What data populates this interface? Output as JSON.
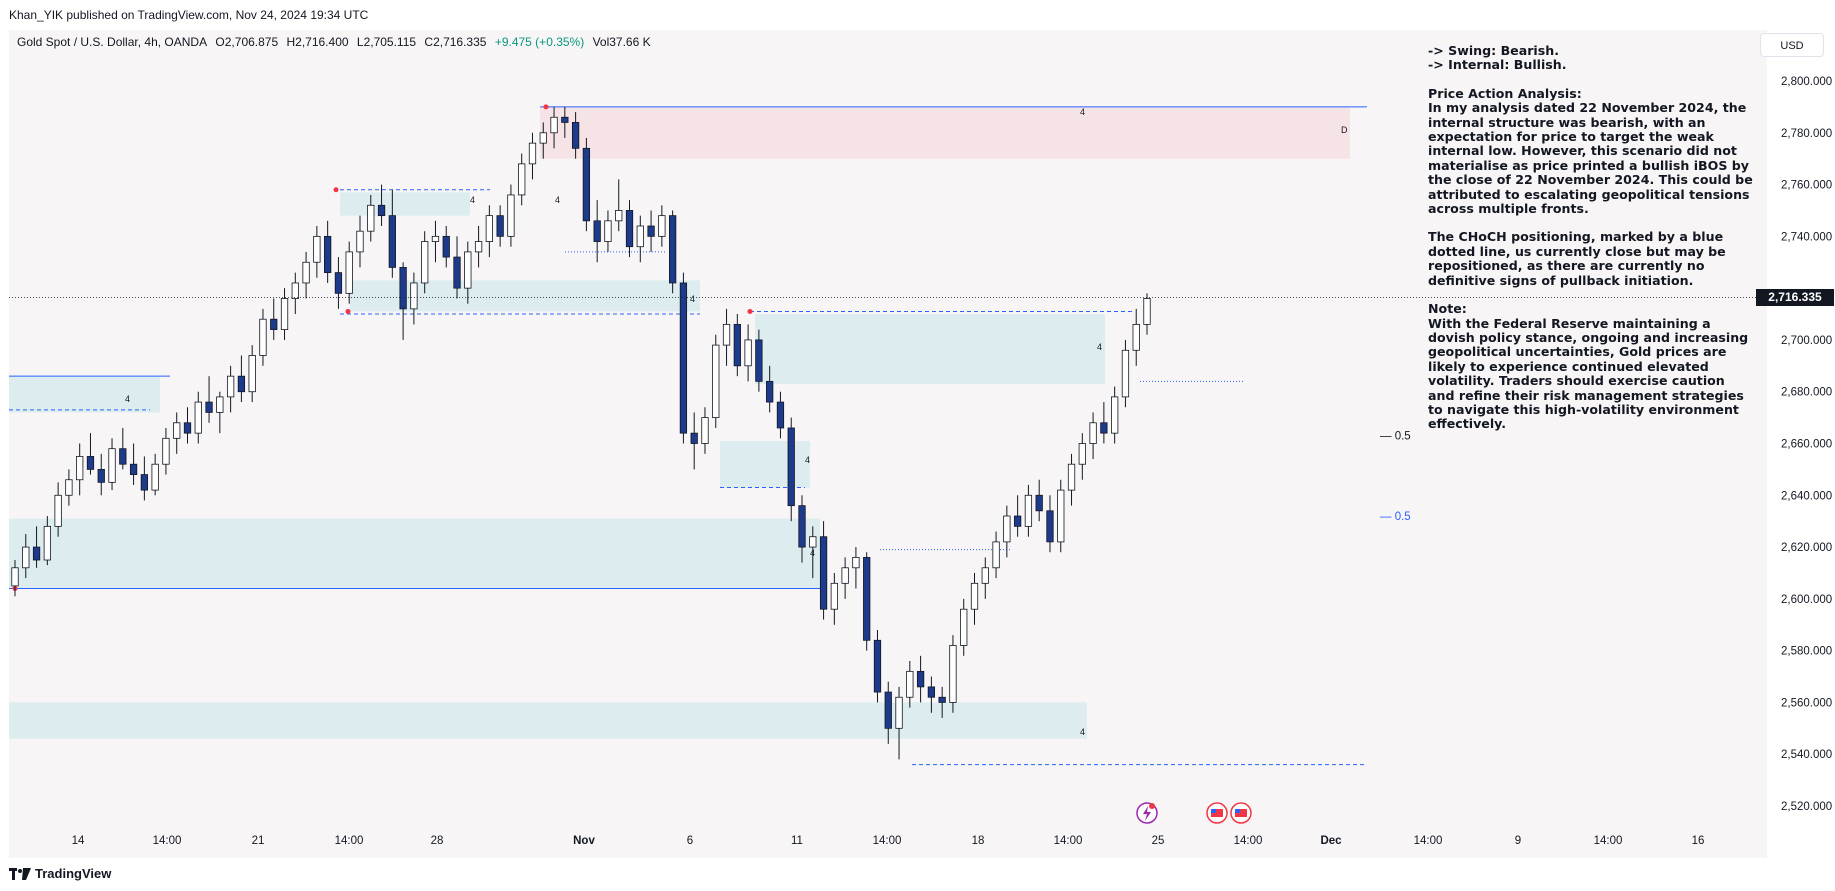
{
  "header": {
    "published": "Khan_YIK published on TradingView.com, Nov 24, 2024 19:34 UTC"
  },
  "legend": {
    "symbol": "Gold Spot / U.S. Dollar, 4h, OANDA",
    "open": "O2,706.875",
    "high": "H2,716.400",
    "low": "L2,705.115",
    "close": "C2,716.335",
    "change": "+9.475 (+0.35%)",
    "volume": "Vol37.66 K",
    "change_color": "#089981"
  },
  "currency_button": "USD",
  "last_price_label": "2,716.335",
  "footer": {
    "brand": "TradingView"
  },
  "notes": {
    "swing": "-> Swing:  Bearish.",
    "internal": "-> Internal:  Bullish.",
    "pa_title": "Price Action Analysis:",
    "pa_body": "In my analysis dated 22 November 2024, the internal structure was bearish, with an expectation for price to target the weak internal low. However, this scenario did not materialise as price printed a bullish iBOS by the close of 22 November 2024. This could be attributed to escalating geopolitical tensions across multiple fronts.",
    "choch_body": "The CHoCH positioning, marked by a blue dotted line, us currently close but may be repositioned, as there are currently no definitive signs of pullback initiation.",
    "note_title": "Note:",
    "note_body": "With the Federal Reserve maintaining a dovish policy stance, ongoing and increasing geopolitical uncertainties, Gold prices are likely to experience continued elevated volatility. Traders should exercise caution and refine their risk management strategies to navigate this high-volatility environment effectively."
  },
  "colors": {
    "bull_candle": "#ffffff",
    "bear_candle": "#1e3a8a",
    "wick": "#131722",
    "demand_zone": "#dcecef",
    "supply_zone": "#f6e3e5",
    "structure_line": "#2962ff"
  },
  "chart_data": {
    "type": "candlestick",
    "symbol": "Gold Spot / U.S. Dollar",
    "timeframe": "4h",
    "y_ticks": [
      2520,
      2540,
      2560,
      2580,
      2600,
      2620,
      2640,
      2660,
      2680,
      2700,
      2720,
      2740,
      2760,
      2780,
      2800
    ],
    "y_tick_labels": [
      "2,520.000",
      "2,540.000",
      "2,560.000",
      "2,580.000",
      "2,600.000",
      "2,620.000",
      "2,640.000",
      "2,660.000",
      "2,680.000",
      "2,700.000",
      "2,720.000",
      "2,740.000",
      "2,760.000",
      "2,780.000",
      "2,800.000"
    ],
    "ylim": [
      2512,
      2818
    ],
    "x_tick_labels": [
      "14",
      "14:00",
      "21",
      "14:00",
      "28",
      "Nov",
      "6",
      "11",
      "14:00",
      "18",
      "14:00",
      "25",
      "14:00",
      "Dec",
      "14:00",
      "9",
      "14:00",
      "16"
    ],
    "last_price": 2716.335,
    "fib_labels": [
      {
        "text": "0.5",
        "price": 2663
      },
      {
        "text": "0.5",
        "price": 2632
      }
    ],
    "zone_labels": [
      "4",
      "4",
      "4",
      "4",
      "4",
      "4",
      "4",
      "4",
      "4",
      "D"
    ],
    "candles": [
      [
        2605,
        2615,
        2601,
        2612
      ],
      [
        2612,
        2625,
        2608,
        2620
      ],
      [
        2620,
        2628,
        2612,
        2615
      ],
      [
        2615,
        2632,
        2613,
        2628
      ],
      [
        2628,
        2645,
        2624,
        2640
      ],
      [
        2640,
        2650,
        2636,
        2646
      ],
      [
        2646,
        2660,
        2640,
        2655
      ],
      [
        2655,
        2664,
        2648,
        2650
      ],
      [
        2650,
        2656,
        2640,
        2645
      ],
      [
        2645,
        2662,
        2642,
        2658
      ],
      [
        2658,
        2666,
        2650,
        2652
      ],
      [
        2652,
        2660,
        2644,
        2648
      ],
      [
        2648,
        2655,
        2638,
        2642
      ],
      [
        2642,
        2656,
        2640,
        2652
      ],
      [
        2652,
        2666,
        2648,
        2662
      ],
      [
        2662,
        2672,
        2656,
        2668
      ],
      [
        2668,
        2674,
        2660,
        2664
      ],
      [
        2664,
        2680,
        2660,
        2676
      ],
      [
        2676,
        2686,
        2668,
        2672
      ],
      [
        2672,
        2680,
        2664,
        2678
      ],
      [
        2678,
        2690,
        2672,
        2686
      ],
      [
        2686,
        2694,
        2676,
        2680
      ],
      [
        2680,
        2698,
        2676,
        2694
      ],
      [
        2694,
        2712,
        2690,
        2708
      ],
      [
        2708,
        2716,
        2700,
        2704
      ],
      [
        2704,
        2720,
        2700,
        2716
      ],
      [
        2716,
        2726,
        2710,
        2722
      ],
      [
        2722,
        2734,
        2716,
        2730
      ],
      [
        2730,
        2744,
        2724,
        2740
      ],
      [
        2740,
        2746,
        2722,
        2726
      ],
      [
        2726,
        2732,
        2712,
        2718
      ],
      [
        2718,
        2738,
        2714,
        2734
      ],
      [
        2734,
        2748,
        2728,
        2742
      ],
      [
        2742,
        2756,
        2738,
        2752
      ],
      [
        2752,
        2760,
        2744,
        2748
      ],
      [
        2748,
        2758,
        2724,
        2728
      ],
      [
        2728,
        2730,
        2700,
        2712
      ],
      [
        2712,
        2726,
        2706,
        2722
      ],
      [
        2722,
        2742,
        2718,
        2738
      ],
      [
        2738,
        2746,
        2730,
        2740
      ],
      [
        2740,
        2744,
        2728,
        2732
      ],
      [
        2732,
        2740,
        2716,
        2720
      ],
      [
        2720,
        2738,
        2714,
        2734
      ],
      [
        2734,
        2744,
        2728,
        2738
      ],
      [
        2738,
        2752,
        2732,
        2748
      ],
      [
        2748,
        2752,
        2736,
        2740
      ],
      [
        2740,
        2760,
        2736,
        2756
      ],
      [
        2756,
        2772,
        2752,
        2768
      ],
      [
        2768,
        2780,
        2762,
        2776
      ],
      [
        2776,
        2784,
        2770,
        2780
      ],
      [
        2780,
        2790,
        2774,
        2786
      ],
      [
        2786,
        2790,
        2778,
        2784
      ],
      [
        2784,
        2788,
        2770,
        2774
      ],
      [
        2774,
        2778,
        2742,
        2746
      ],
      [
        2746,
        2754,
        2730,
        2738
      ],
      [
        2738,
        2750,
        2734,
        2746
      ],
      [
        2746,
        2762,
        2742,
        2750
      ],
      [
        2750,
        2754,
        2732,
        2736
      ],
      [
        2736,
        2748,
        2730,
        2744
      ],
      [
        2744,
        2750,
        2734,
        2740
      ],
      [
        2740,
        2752,
        2736,
        2748
      ],
      [
        2748,
        2750,
        2718,
        2722
      ],
      [
        2722,
        2726,
        2660,
        2664
      ],
      [
        2664,
        2672,
        2650,
        2660
      ],
      [
        2660,
        2674,
        2656,
        2670
      ],
      [
        2670,
        2702,
        2666,
        2698
      ],
      [
        2698,
        2712,
        2690,
        2706
      ],
      [
        2706,
        2710,
        2686,
        2690
      ],
      [
        2690,
        2706,
        2684,
        2700
      ],
      [
        2700,
        2704,
        2680,
        2684
      ],
      [
        2684,
        2690,
        2672,
        2676
      ],
      [
        2676,
        2680,
        2662,
        2666
      ],
      [
        2666,
        2670,
        2630,
        2636
      ],
      [
        2636,
        2640,
        2614,
        2620
      ],
      [
        2620,
        2628,
        2608,
        2624
      ],
      [
        2624,
        2630,
        2592,
        2596
      ],
      [
        2596,
        2610,
        2590,
        2606
      ],
      [
        2606,
        2616,
        2600,
        2612
      ],
      [
        2612,
        2620,
        2604,
        2616
      ],
      [
        2616,
        2618,
        2580,
        2584
      ],
      [
        2584,
        2588,
        2560,
        2564
      ],
      [
        2564,
        2568,
        2544,
        2550
      ],
      [
        2550,
        2566,
        2538,
        2562
      ],
      [
        2562,
        2576,
        2558,
        2572
      ],
      [
        2572,
        2578,
        2560,
        2566
      ],
      [
        2566,
        2570,
        2556,
        2562
      ],
      [
        2562,
        2566,
        2554,
        2560
      ],
      [
        2560,
        2586,
        2556,
        2582
      ],
      [
        2582,
        2600,
        2578,
        2596
      ],
      [
        2596,
        2610,
        2590,
        2606
      ],
      [
        2606,
        2616,
        2600,
        2612
      ],
      [
        2612,
        2626,
        2608,
        2622
      ],
      [
        2622,
        2636,
        2616,
        2632
      ],
      [
        2632,
        2640,
        2624,
        2628
      ],
      [
        2628,
        2644,
        2624,
        2640
      ],
      [
        2640,
        2646,
        2630,
        2634
      ],
      [
        2634,
        2640,
        2618,
        2622
      ],
      [
        2622,
        2646,
        2618,
        2642
      ],
      [
        2642,
        2656,
        2636,
        2652
      ],
      [
        2652,
        2664,
        2646,
        2660
      ],
      [
        2660,
        2672,
        2654,
        2668
      ],
      [
        2668,
        2676,
        2660,
        2664
      ],
      [
        2664,
        2682,
        2660,
        2678
      ],
      [
        2678,
        2700,
        2674,
        2696
      ],
      [
        2696,
        2712,
        2690,
        2706
      ],
      [
        2706,
        2718,
        2702,
        2716
      ]
    ],
    "levels": [
      {
        "price": 2790,
        "style": "solid"
      },
      {
        "price": 2604,
        "style": "solid"
      },
      {
        "price": 2686,
        "style": "solid"
      },
      {
        "price": 2734,
        "style": "dotted"
      },
      {
        "price": 2710,
        "style": "dashed"
      },
      {
        "price": 2758,
        "style": "dashed"
      },
      {
        "price": 2711,
        "style": "dashed"
      },
      {
        "price": 2673,
        "style": "dashed"
      },
      {
        "price": 2643,
        "style": "dashed"
      },
      {
        "price": 2536,
        "style": "dashed"
      },
      {
        "price": 2619,
        "style": "dotted"
      },
      {
        "price": 2684,
        "style": "dotted"
      }
    ],
    "zones": [
      {
        "type": "supply",
        "from": 2770,
        "to": 2790
      },
      {
        "type": "demand",
        "from": 2757,
        "to": 2748
      },
      {
        "type": "demand",
        "from": 2723,
        "to": 2711
      },
      {
        "type": "demand",
        "from": 2710,
        "to": 2683
      },
      {
        "type": "demand",
        "from": 2686,
        "to": 2672
      },
      {
        "type": "demand",
        "from": 2661,
        "to": 2643
      },
      {
        "type": "demand",
        "from": 2631,
        "to": 2604
      },
      {
        "type": "demand",
        "from": 2560,
        "to": 2546
      }
    ]
  }
}
